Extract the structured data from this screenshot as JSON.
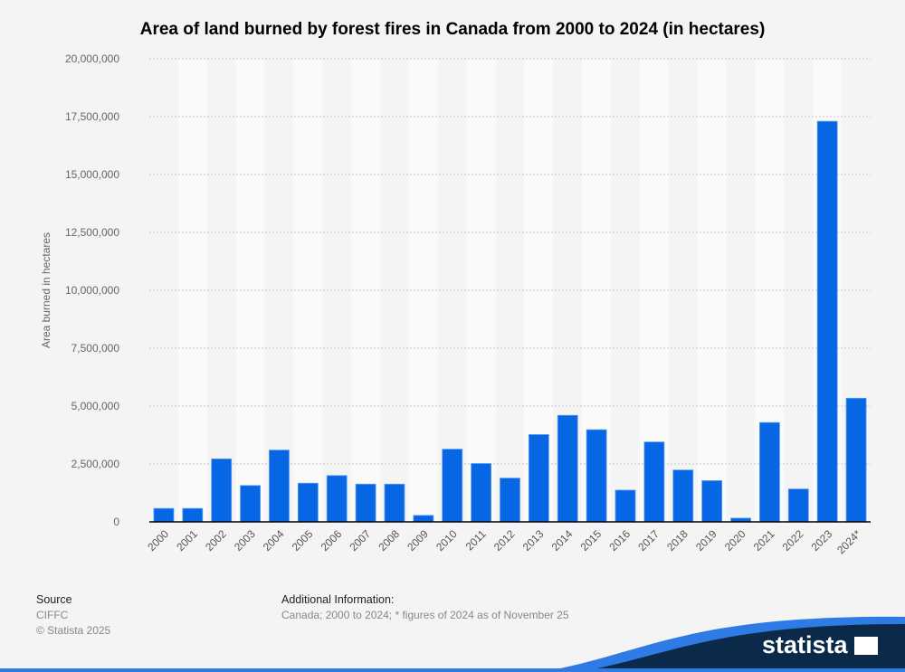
{
  "chart_data": {
    "type": "bar",
    "title": "Area of land burned by forest fires in Canada from 2000 to 2024 (in hectares)",
    "xlabel": "",
    "ylabel": "Area burned in hectares",
    "ylim": [
      0,
      20000000
    ],
    "yticks": [
      0,
      2500000,
      5000000,
      7500000,
      10000000,
      12500000,
      15000000,
      17500000,
      20000000
    ],
    "ytick_labels": [
      "0",
      "2,500,000",
      "5,000,000",
      "7,500,000",
      "10,000,000",
      "12,500,000",
      "15,000,000",
      "17,500,000",
      "20,000,000"
    ],
    "grid": true,
    "categories": [
      "2000",
      "2001",
      "2002",
      "2003",
      "2004",
      "2005",
      "2006",
      "2007",
      "2008",
      "2009",
      "2010",
      "2011",
      "2012",
      "2013",
      "2014",
      "2015",
      "2016",
      "2017",
      "2018",
      "2019",
      "2020",
      "2021",
      "2022",
      "2023",
      "2024*"
    ],
    "values": [
      580000,
      580000,
      2720000,
      1570000,
      3100000,
      1670000,
      2000000,
      1630000,
      1630000,
      280000,
      3140000,
      2520000,
      1890000,
      3770000,
      4600000,
      3980000,
      1370000,
      3450000,
      2240000,
      1780000,
      160000,
      4290000,
      1420000,
      17300000,
      5340000
    ],
    "bar_color": "#0766e3"
  },
  "footer": {
    "source_label": "Source",
    "source_value": "CIFFC",
    "copyright": "© Statista 2025",
    "additional_label": "Additional Information:",
    "additional_value": "Canada; 2000 to 2024; * figures of 2024 as of November 25"
  },
  "brand": "statista",
  "colors": {
    "background": "#f4f4f4",
    "brand_wave": "#0b2a4a",
    "accent": "#2f7be5"
  }
}
